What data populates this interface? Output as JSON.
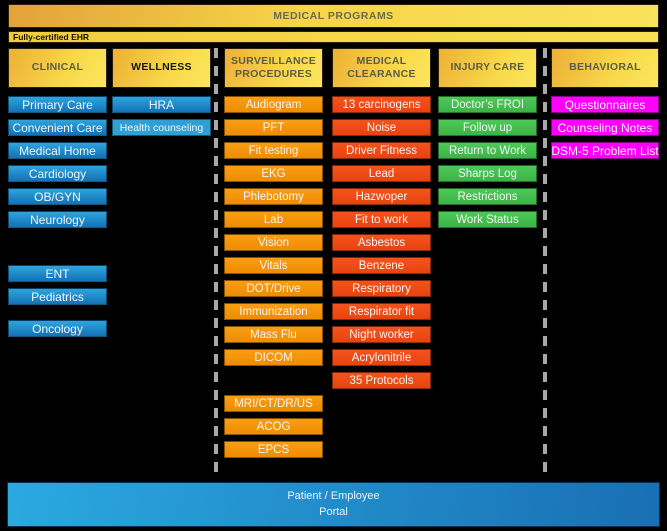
{
  "banner": {
    "title": "MEDICAL PROGRAMS"
  },
  "ehr_bar": {
    "label": "Fully-certified EHR"
  },
  "columns": [
    {
      "id": "clinical",
      "header": "CLINICAL",
      "color": "blue",
      "groups": [
        [
          "Primary Care",
          "Convenient Care",
          "Medical Home",
          "Cardiology",
          "OB/GYN",
          "Neurology"
        ],
        [
          "ENT",
          "Pediatrics"
        ],
        [
          "Oncology"
        ]
      ]
    },
    {
      "id": "wellness",
      "header": "WELLNESS",
      "color": "blue",
      "groups": [
        [
          "HRA",
          "Health counseling"
        ]
      ]
    },
    {
      "id": "surveillance",
      "header": "SURVEILLANCE PROCEDURES",
      "color": "orange",
      "groups": [
        [
          "Audiogram",
          "PFT",
          "Fit testing",
          "EKG",
          "Phlebotomy",
          "Lab",
          "Vision",
          "Vitals",
          "DOT/Drive",
          "Immunization",
          "Mass Flu",
          "DICOM"
        ],
        [
          "MRI/CT/DR/US",
          "ACOG",
          "EPCS"
        ]
      ]
    },
    {
      "id": "medical-clearance",
      "header": "MEDICAL CLEARANCE",
      "color": "red",
      "groups": [
        [
          "13 carcinogens",
          "Noise",
          "Driver Fitness",
          "Lead",
          "Hazwoper",
          "Fit to work",
          "Asbestos",
          "Benzene",
          "Respiratory",
          "Respirator fit",
          "Night worker",
          "Acrylonitrile",
          "35 Protocols"
        ]
      ]
    },
    {
      "id": "injury-care",
      "header": "INJURY CARE",
      "color": "green",
      "groups": [
        [
          "Doctor’s FROI",
          "Follow up",
          "Return to Work",
          "Sharps Log",
          "Restrictions",
          "Work Status"
        ]
      ]
    },
    {
      "id": "behavioral",
      "header": "BEHAVIORAL",
      "color": "magenta",
      "groups": [
        [
          "Questionnaires",
          "Counseling Notes",
          "DSM-5 Problem List"
        ]
      ]
    }
  ],
  "footer": {
    "line1": "Patient / Employee",
    "line2": "Portal"
  },
  "colors": {
    "background": "#000000",
    "banner_gold": "#f6d546",
    "clinical_blue": "#1e8bc8",
    "surveillance_orange": "#f5930b",
    "clearance_red": "#ef4a17",
    "injury_green": "#44c04e",
    "behavioral_magenta": "#ff00ff",
    "portal_blue": "#2196d0",
    "divider_gray": "#a8a8a8"
  }
}
